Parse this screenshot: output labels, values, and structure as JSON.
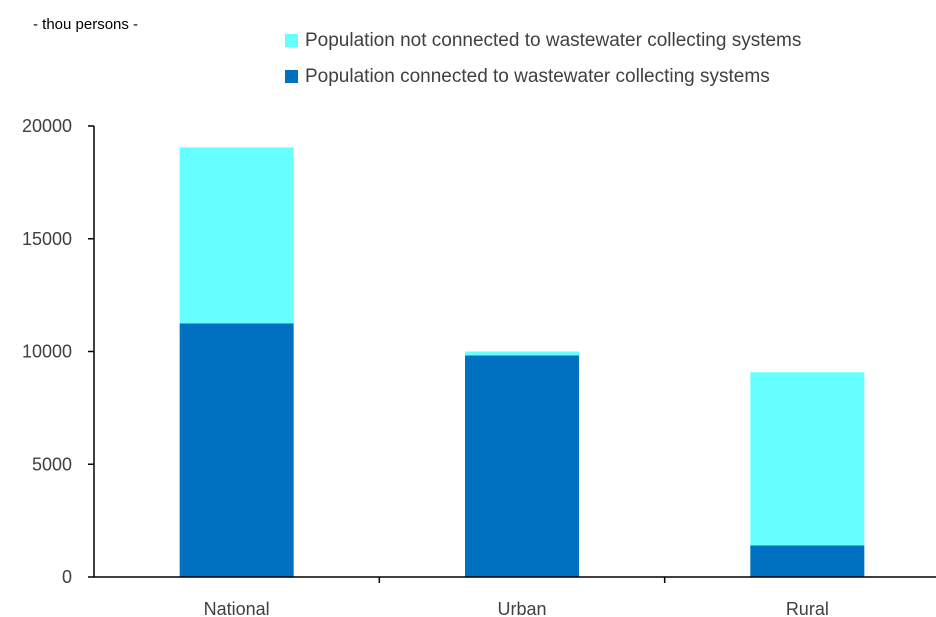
{
  "chart_data": {
    "type": "bar",
    "stacked": true,
    "unit_label": "- thou persons -",
    "title": "",
    "xlabel": "",
    "ylabel": "",
    "categories": [
      "National",
      "Urban",
      "Rural"
    ],
    "series": [
      {
        "name": "Population connected to wastewater collecting systems",
        "color": "#0070c0",
        "values": [
          11250,
          9830,
          1400
        ]
      },
      {
        "name": "Population not connected to wastewater collecting systems",
        "color": "#66ffff",
        "values": [
          7800,
          170,
          7680
        ]
      }
    ],
    "legend_order": [
      1,
      0
    ],
    "legend_position": "top-right",
    "ylim": [
      0,
      20000
    ],
    "yticks": [
      0,
      5000,
      10000,
      15000,
      20000
    ],
    "grid": false
  }
}
